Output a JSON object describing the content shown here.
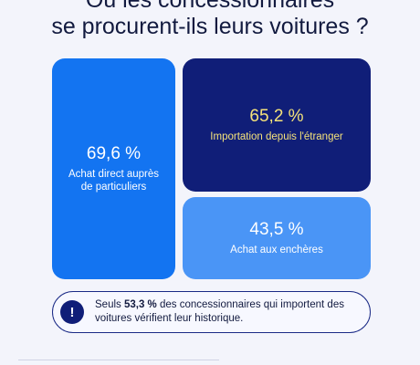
{
  "header": {
    "title_line_1": "Où les concessionnaires",
    "title_line_2": "se procurent-ils leurs voitures ?"
  },
  "chart_data": {
    "type": "table",
    "title": "Où les concessionnaires se procurent-ils leurs voitures ?",
    "categories": [
      "Achat direct auprès de particuliers",
      "Importation depuis l'étranger",
      "Achat aux enchères"
    ],
    "values": [
      69.6,
      65.2,
      43.5
    ],
    "value_labels": [
      "69,6 %",
      "65,2 %",
      "43,5 %"
    ],
    "unit": "%"
  },
  "note": {
    "icon": "exclamation-icon",
    "prefix": "Seuls ",
    "highlight": "53,3 %",
    "suffix": " des concessionnaires qui importent des voitures vérifient leur historique."
  },
  "colors": {
    "direct": "#1374f1",
    "import": "#101e78",
    "import_text": "#f4e27a",
    "auction": "#4a95f6",
    "text": "#121a3f"
  }
}
